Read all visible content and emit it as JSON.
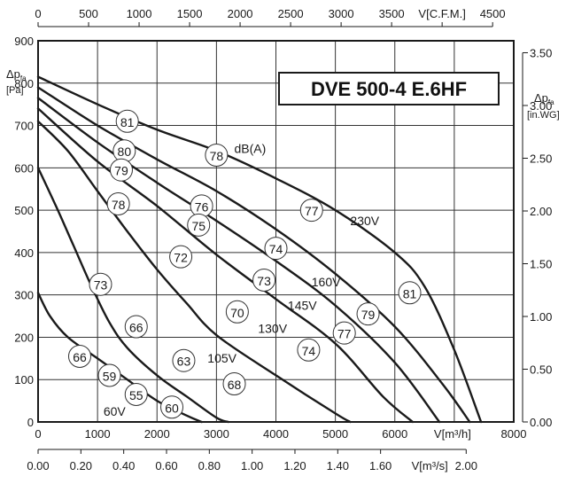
{
  "chart_data": {
    "type": "line",
    "title": "DVE 500-4 E.6HF",
    "x_axis_bottom": {
      "label": "V[m³/h]",
      "ticks": [
        "0",
        "1000",
        "2000",
        "3000",
        "4000",
        "5000",
        "6000",
        "8000"
      ],
      "range": [
        0,
        8000
      ]
    },
    "x_axis_bottom2": {
      "label": "V[m³/s]",
      "ticks": [
        "0.00",
        "0.20",
        "0.40",
        "0.60",
        "0.80",
        "1.00",
        "1.20",
        "1.40",
        "1.60",
        "2.00"
      ],
      "range": [
        0,
        2.2222
      ]
    },
    "x_axis_top": {
      "label": "V[C.F.M.]",
      "ticks": [
        "0",
        "500",
        "1000",
        "1500",
        "2000",
        "2500",
        "3000",
        "3500",
        "4500"
      ],
      "range": [
        0,
        4709
      ]
    },
    "y_axis_left": {
      "label_main": "Δp",
      "label_sub": "fa",
      "unit": "[Pa]",
      "ticks": [
        "0",
        "100",
        "200",
        "300",
        "400",
        "500",
        "600",
        "700",
        "800",
        "900"
      ],
      "range": [
        0,
        900
      ]
    },
    "y_axis_right": {
      "label_main": "Δp",
      "label_sub": "fa",
      "unit": "[in.WG]",
      "ticks": [
        "0.00",
        "0.50",
        "1.00",
        "1.50",
        "2.00",
        "2.50",
        "3.00",
        "3.50"
      ],
      "range": [
        0,
        3.6133
      ]
    },
    "grid": true,
    "series": [
      {
        "name": "230V",
        "points": [
          [
            0,
            815
          ],
          [
            1000,
            750
          ],
          [
            2000,
            690
          ],
          [
            3000,
            640
          ],
          [
            4000,
            575
          ],
          [
            5000,
            500
          ],
          [
            6000,
            400
          ],
          [
            6500,
            320
          ],
          [
            7000,
            170
          ],
          [
            7450,
            0
          ]
        ]
      },
      {
        "name": "160V",
        "points": [
          [
            0,
            790
          ],
          [
            1000,
            700
          ],
          [
            2000,
            620
          ],
          [
            3000,
            545
          ],
          [
            4000,
            455
          ],
          [
            5000,
            350
          ],
          [
            6000,
            225
          ],
          [
            6800,
            90
          ],
          [
            7260,
            0
          ]
        ]
      },
      {
        "name": "145V",
        "points": [
          [
            0,
            765
          ],
          [
            1000,
            660
          ],
          [
            2000,
            565
          ],
          [
            3000,
            475
          ],
          [
            4000,
            380
          ],
          [
            5000,
            275
          ],
          [
            6000,
            140
          ],
          [
            6750,
            0
          ]
        ]
      },
      {
        "name": "130V",
        "points": [
          [
            0,
            740
          ],
          [
            1000,
            615
          ],
          [
            2000,
            510
          ],
          [
            3000,
            395
          ],
          [
            4000,
            290
          ],
          [
            5000,
            185
          ],
          [
            5800,
            60
          ],
          [
            6300,
            0
          ]
        ]
      },
      {
        "name": "105V",
        "points": [
          [
            0,
            710
          ],
          [
            500,
            640
          ],
          [
            1000,
            545
          ],
          [
            1500,
            450
          ],
          [
            2000,
            360
          ],
          [
            2500,
            280
          ],
          [
            3000,
            205
          ],
          [
            4000,
            110
          ],
          [
            5000,
            20
          ],
          [
            5250,
            0
          ]
        ]
      },
      {
        "name": "60V",
        "points": [
          [
            0,
            600
          ],
          [
            300,
            510
          ],
          [
            600,
            415
          ],
          [
            900,
            320
          ],
          [
            1200,
            235
          ],
          [
            1500,
            175
          ],
          [
            2000,
            110
          ],
          [
            2500,
            60
          ],
          [
            3000,
            10
          ],
          [
            3200,
            0
          ]
        ]
      },
      {
        "name": "",
        "points": [
          [
            0,
            305
          ],
          [
            200,
            250
          ],
          [
            500,
            200
          ],
          [
            1000,
            150
          ],
          [
            1500,
            100
          ],
          [
            2000,
            50
          ],
          [
            2500,
            15
          ],
          [
            2750,
            0
          ]
        ]
      }
    ],
    "sound_levels": [
      {
        "value": "81",
        "x": 1500,
        "y": 710
      },
      {
        "value": "78",
        "x": 3000,
        "y": 630
      },
      {
        "value": "77",
        "x": 4600,
        "y": 500
      },
      {
        "value": "81",
        "x": 6250,
        "y": 305
      },
      {
        "value": "80",
        "x": 1450,
        "y": 640
      },
      {
        "value": "76",
        "x": 2750,
        "y": 510
      },
      {
        "value": "74",
        "x": 4000,
        "y": 410
      },
      {
        "value": "79",
        "x": 5550,
        "y": 255
      },
      {
        "value": "79",
        "x": 1400,
        "y": 595
      },
      {
        "value": "75",
        "x": 2700,
        "y": 465
      },
      {
        "value": "73",
        "x": 3800,
        "y": 335
      },
      {
        "value": "77",
        "x": 5150,
        "y": 210
      },
      {
        "value": "78",
        "x": 1350,
        "y": 515
      },
      {
        "value": "72",
        "x": 2400,
        "y": 390
      },
      {
        "value": "70",
        "x": 3350,
        "y": 260
      },
      {
        "value": "74",
        "x": 4550,
        "y": 170
      },
      {
        "value": "73",
        "x": 1050,
        "y": 325
      },
      {
        "value": "66",
        "x": 1650,
        "y": 225
      },
      {
        "value": "63",
        "x": 2450,
        "y": 145
      },
      {
        "value": "68",
        "x": 3300,
        "y": 90
      },
      {
        "value": "66",
        "x": 700,
        "y": 155
      },
      {
        "value": "59",
        "x": 1200,
        "y": 110
      },
      {
        "value": "55",
        "x": 1650,
        "y": 65
      },
      {
        "value": "60",
        "x": 2250,
        "y": 35
      }
    ],
    "annotations": [
      {
        "text": "dB(A)",
        "x": 3300,
        "y": 635
      },
      {
        "text": "230V",
        "x": 5250,
        "y": 465
      },
      {
        "text": "160V",
        "x": 4600,
        "y": 320
      },
      {
        "text": "145V",
        "x": 4200,
        "y": 265
      },
      {
        "text": "130V",
        "x": 3700,
        "y": 210
      },
      {
        "text": "105V",
        "x": 2850,
        "y": 140
      },
      {
        "text": "60V",
        "x": 1100,
        "y": 15
      }
    ]
  }
}
